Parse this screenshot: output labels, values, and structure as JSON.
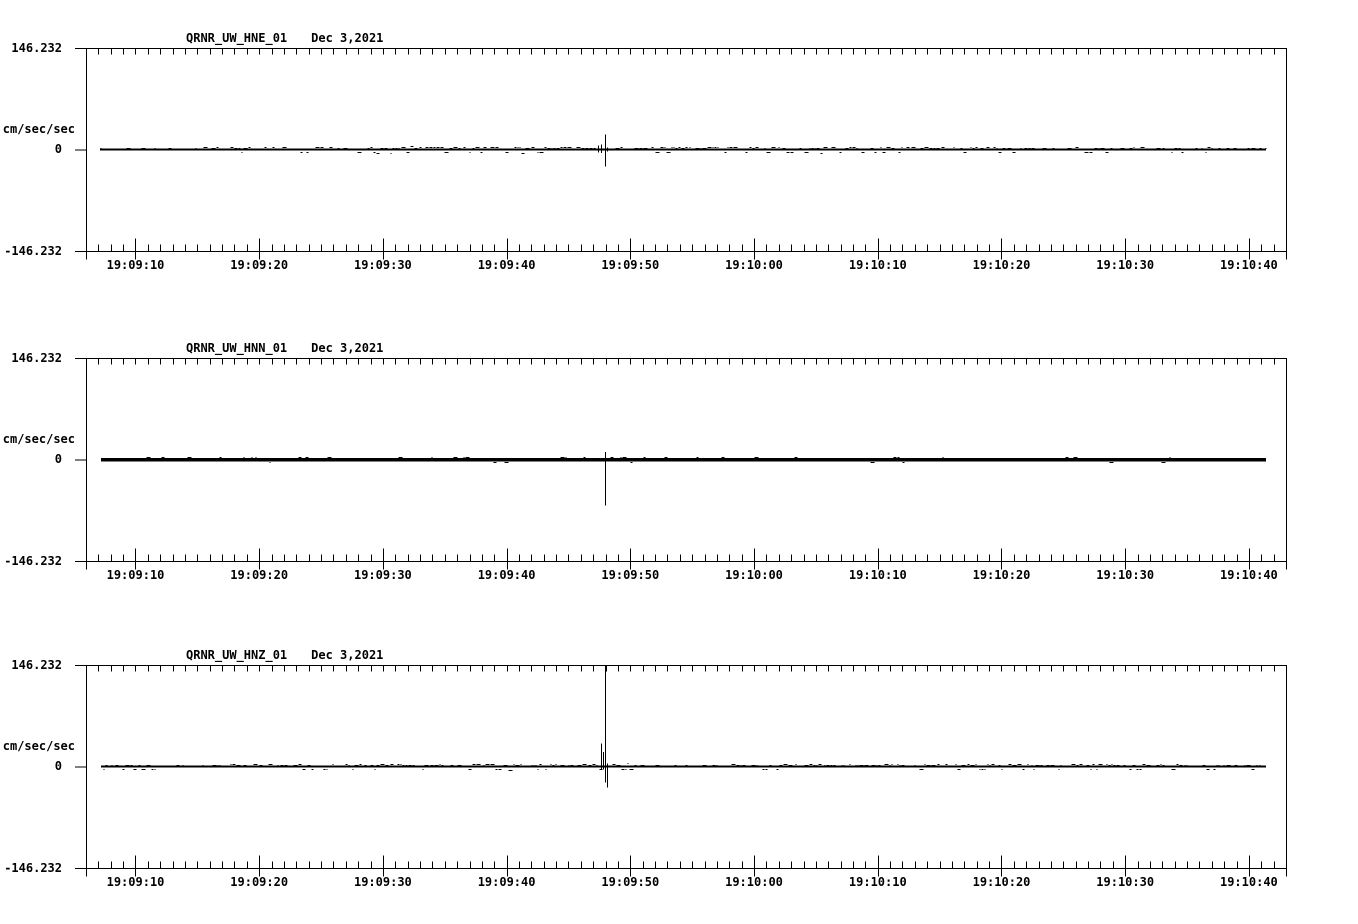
{
  "page": {
    "background": "#ffffff",
    "ink": "#000000"
  },
  "chart_data": [
    {
      "type": "line",
      "kind": "seismogram",
      "title": "QRNR_UW_HNE_01",
      "date": "Dec 3,2021",
      "channel": "HNE",
      "ylabel": "cm/sec/sec",
      "y_max_label": "146.232",
      "y_zero_label": "0",
      "y_min_label": "-146.232",
      "ylim": [
        -146.232,
        146.232
      ],
      "x_tick_labels": [
        "19:09:10",
        "19:09:20",
        "19:09:30",
        "19:09:40",
        "19:09:50",
        "19:10:00",
        "19:10:10",
        "19:10:20",
        "19:10:30",
        "19:10:40"
      ],
      "x_tick_sec": [
        4,
        14,
        24,
        34,
        44,
        54,
        64,
        74,
        84,
        94
      ],
      "x_span_sec": 97,
      "seed": 7,
      "trace": {
        "start_sec": 1.1,
        "end_sec": 95.4,
        "base_thickness_px": 2,
        "noise": [
          [
            1.1,
            9,
            1.5,
            0.15
          ],
          [
            9,
            17,
            2,
            0.3
          ],
          [
            17,
            23,
            2.8,
            0.55
          ],
          [
            23,
            30,
            3.6,
            0.8
          ],
          [
            30,
            40.5,
            2.8,
            0.7
          ],
          [
            40.5,
            41.3,
            2,
            0.5
          ],
          [
            42.3,
            47,
            2.8,
            0.55
          ],
          [
            47,
            62,
            2.8,
            0.75
          ],
          [
            62,
            78,
            2,
            0.5
          ],
          [
            78,
            95.4,
            1.6,
            0.35
          ]
        ],
        "spikes": [
          [
            41.35,
            6,
            4
          ],
          [
            41.6,
            7,
            5
          ],
          [
            41.97,
            21.5,
            24.5
          ],
          [
            42.1,
            3,
            3
          ]
        ]
      }
    },
    {
      "type": "line",
      "kind": "seismogram",
      "title": "QRNR_UW_HNN_01",
      "date": "Dec 3,2021",
      "channel": "HNN",
      "ylabel": "cm/sec/sec",
      "y_max_label": "146.232",
      "y_zero_label": "0",
      "y_min_label": "-146.232",
      "ylim": [
        -146.232,
        146.232
      ],
      "x_tick_labels": [
        "19:09:10",
        "19:09:20",
        "19:09:30",
        "19:09:40",
        "19:09:50",
        "19:10:00",
        "19:10:10",
        "19:10:20",
        "19:10:30",
        "19:10:40"
      ],
      "x_tick_sec": [
        4,
        14,
        24,
        34,
        44,
        54,
        64,
        74,
        84,
        94
      ],
      "x_span_sec": 97,
      "seed": 11,
      "trace": {
        "start_sec": 1.2,
        "end_sec": 95.4,
        "base_thickness_px": 3.5,
        "noise": [
          [
            1.2,
            95.4,
            0.7,
            0.08
          ]
        ],
        "spikes": [
          [
            41.55,
            0,
            3
          ],
          [
            41.97,
            11,
            66
          ]
        ]
      }
    },
    {
      "type": "line",
      "kind": "seismogram",
      "title": "QRNR_UW_HNZ_01",
      "date": "Dec 3,2021",
      "channel": "HNZ",
      "ylabel": "cm/sec/sec",
      "y_max_label": "146.232",
      "y_zero_label": "0",
      "y_min_label": "-146.232",
      "ylim": [
        -146.232,
        146.232
      ],
      "x_tick_labels": [
        "19:09:10",
        "19:09:20",
        "19:09:30",
        "19:09:40",
        "19:09:50",
        "19:10:00",
        "19:10:10",
        "19:10:20",
        "19:10:30",
        "19:10:40"
      ],
      "x_tick_sec": [
        4,
        14,
        24,
        34,
        44,
        54,
        64,
        74,
        84,
        94
      ],
      "x_span_sec": 97,
      "seed": 13,
      "trace": {
        "start_sec": 1.2,
        "end_sec": 95.4,
        "base_thickness_px": 2,
        "noise": [
          [
            1.2,
            10,
            1.4,
            0.3
          ],
          [
            10,
            24,
            2,
            0.5
          ],
          [
            24,
            33,
            2.8,
            0.6
          ],
          [
            33,
            41.5,
            2.8,
            0.7
          ],
          [
            42.4,
            44,
            4,
            0.9
          ],
          [
            44,
            52,
            1.4,
            0.3
          ],
          [
            52,
            70,
            2,
            0.55
          ],
          [
            70,
            88,
            2.5,
            0.65
          ],
          [
            88,
            95.4,
            1.6,
            0.4
          ]
        ],
        "spikes": [
          [
            41.6,
            33,
            4
          ],
          [
            41.78,
            21,
            4
          ],
          [
            41.97,
            146,
            23
          ],
          [
            42.12,
            4,
            30
          ]
        ]
      }
    }
  ]
}
